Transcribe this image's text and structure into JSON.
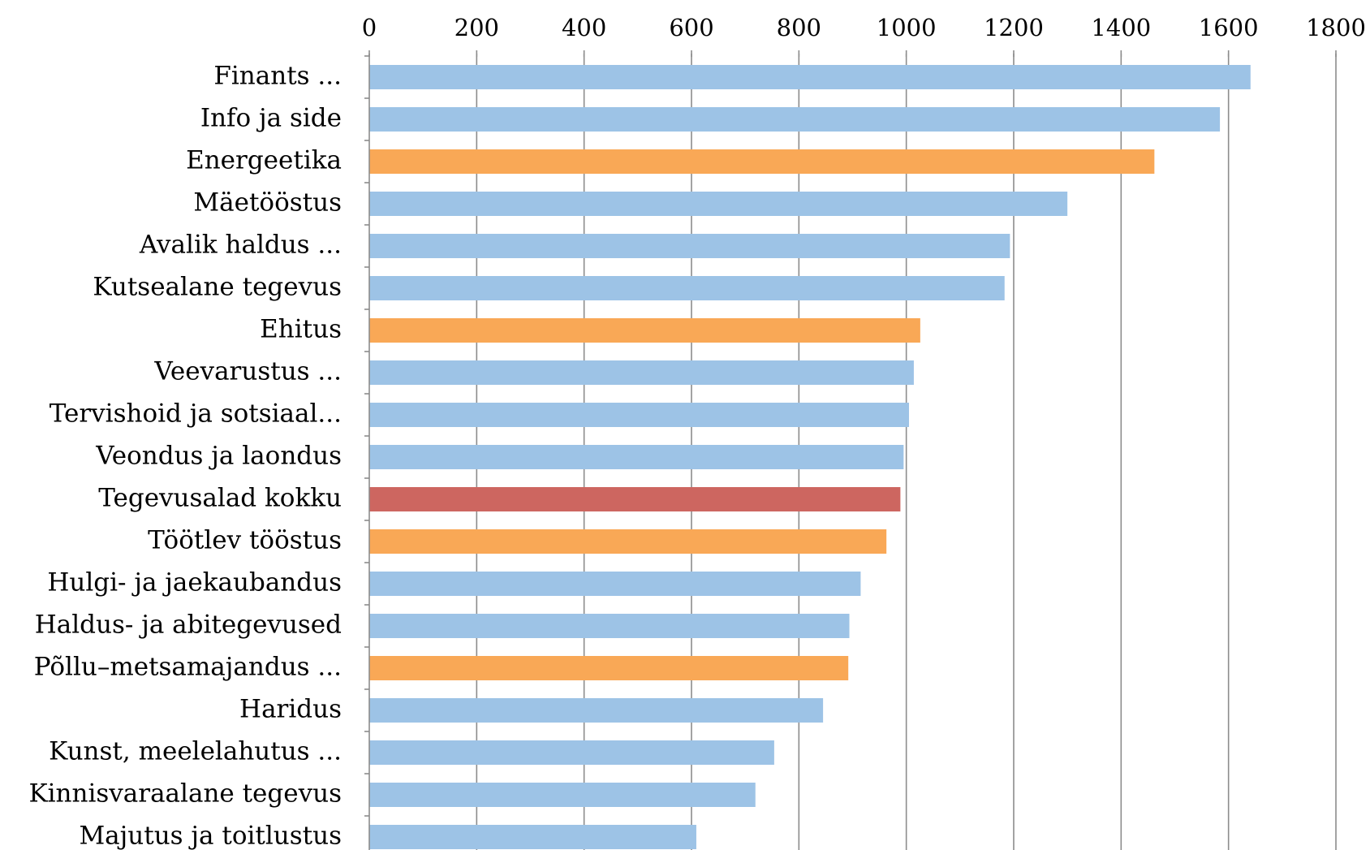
{
  "chart_data": {
    "type": "bar",
    "orientation": "horizontal",
    "title": "",
    "xlabel": "",
    "ylabel": "",
    "xlim": [
      0,
      1800
    ],
    "x_ticks": [
      "0",
      "200",
      "400",
      "600",
      "800",
      "1000",
      "1200",
      "1400",
      "1600",
      "1800"
    ],
    "x_tick_values": [
      0,
      200,
      400,
      600,
      800,
      1000,
      1200,
      1400,
      1600,
      1800
    ],
    "x_axis_position": "top",
    "grid": true,
    "legend": "none",
    "categories": [
      "Finants ...",
      "Info ja side",
      "Energeetika",
      "Mäetööstus",
      "Avalik haldus ...",
      "Kutsealane tegevus",
      "Ehitus",
      "Veevarustus ...",
      "Tervishoid ja sotsiaal...",
      "Veondus ja laondus",
      "Tegevusalad kokku",
      "Töötlev tööstus",
      "Hulgi- ja jaekaubandus",
      "Haldus- ja abitegevused",
      "Põllu–metsamajandus ...",
      "Haridus",
      "Kunst, meelelahutus ...",
      "Kinnisvaraalane tegevus",
      "Majutus ja toitlustus"
    ],
    "values": [
      1641,
      1584,
      1462,
      1300,
      1193,
      1183,
      1026,
      1014,
      1005,
      995,
      989,
      963,
      915,
      894,
      892,
      845,
      754,
      719,
      609
    ],
    "bar_colors": [
      "#9dc3e6",
      "#9dc3e6",
      "#f9a856",
      "#9dc3e6",
      "#9dc3e6",
      "#9dc3e6",
      "#f9a856",
      "#9dc3e6",
      "#9dc3e6",
      "#9dc3e6",
      "#cd6660",
      "#f9a856",
      "#9dc3e6",
      "#9dc3e6",
      "#f9a856",
      "#9dc3e6",
      "#9dc3e6",
      "#9dc3e6",
      "#9dc3e6"
    ]
  },
  "colors": {
    "default_bar": "#9dc3e6",
    "highlight_bar": "#f9a856",
    "total_bar": "#cd6660",
    "grid": "#8c8c8c"
  }
}
